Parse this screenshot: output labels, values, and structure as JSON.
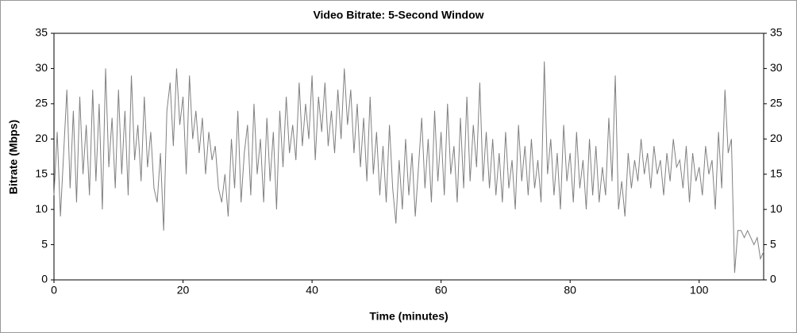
{
  "chart_data": {
    "type": "line",
    "title": "Video Bitrate: 5-Second Window",
    "x_label": "Time (minutes)",
    "y_label": "Bitrate (Mbps)",
    "xlim": [
      0,
      110
    ],
    "xticks": [
      0,
      20,
      40,
      60,
      80,
      100
    ],
    "ylim": [
      0,
      35
    ],
    "yticks": [
      0,
      5,
      10,
      15,
      20,
      25,
      30,
      35
    ],
    "y2lim": [
      0,
      35
    ],
    "y2ticks": [
      0,
      5,
      10,
      15,
      20,
      25,
      30,
      35
    ],
    "series": [
      {
        "color": "#808080",
        "x": [
          0,
          0.5,
          1,
          1.5,
          2,
          2.5,
          3,
          3.5,
          4,
          4.5,
          5,
          5.5,
          6,
          6.5,
          7,
          7.5,
          8,
          8.5,
          9,
          9.5,
          10,
          10.5,
          11,
          11.5,
          12,
          12.5,
          13,
          13.5,
          14,
          14.5,
          15,
          15.5,
          16,
          16.5,
          17,
          17.5,
          18,
          18.5,
          19,
          19.5,
          20,
          20.5,
          21,
          21.5,
          22,
          22.5,
          23,
          23.5,
          24,
          24.5,
          25,
          25.5,
          26,
          26.5,
          27,
          27.5,
          28,
          28.5,
          29,
          29.5,
          30,
          30.5,
          31,
          31.5,
          32,
          32.5,
          33,
          33.5,
          34,
          34.5,
          35,
          35.5,
          36,
          36.5,
          37,
          37.5,
          38,
          38.5,
          39,
          39.5,
          40,
          40.5,
          41,
          41.5,
          42,
          42.5,
          43,
          43.5,
          44,
          44.5,
          45,
          45.5,
          46,
          46.5,
          47,
          47.5,
          48,
          48.5,
          49,
          49.5,
          50,
          50.5,
          51,
          51.5,
          52,
          52.5,
          53,
          53.5,
          54,
          54.5,
          55,
          55.5,
          56,
          56.5,
          57,
          57.5,
          58,
          58.5,
          59,
          59.5,
          60,
          60.5,
          61,
          61.5,
          62,
          62.5,
          63,
          63.5,
          64,
          64.5,
          65,
          65.5,
          66,
          66.5,
          67,
          67.5,
          68,
          68.5,
          69,
          69.5,
          70,
          70.5,
          71,
          71.5,
          72,
          72.5,
          73,
          73.5,
          74,
          74.5,
          75,
          75.5,
          76,
          76.5,
          77,
          77.5,
          78,
          78.5,
          79,
          79.5,
          80,
          80.5,
          81,
          81.5,
          82,
          82.5,
          83,
          83.5,
          84,
          84.5,
          85,
          85.5,
          86,
          86.5,
          87,
          87.5,
          88,
          88.5,
          89,
          89.5,
          90,
          90.5,
          91,
          91.5,
          92,
          92.5,
          93,
          93.5,
          94,
          94.5,
          95,
          95.5,
          96,
          96.5,
          97,
          97.5,
          98,
          98.5,
          99,
          99.5,
          100,
          100.5,
          101,
          101.5,
          102,
          102.5,
          103,
          103.5,
          104,
          104.5,
          105,
          105.5,
          106,
          106.5,
          107,
          107.5,
          108,
          108.5,
          109,
          109.5,
          110
        ],
        "values": [
          12,
          21,
          9,
          18,
          27,
          13,
          24,
          11,
          26,
          15,
          22,
          12,
          27,
          14,
          25,
          10,
          30,
          16,
          23,
          13,
          27,
          15,
          24,
          12,
          29,
          17,
          22,
          14,
          26,
          16,
          21,
          13,
          11,
          18,
          7,
          24,
          28,
          19,
          30,
          22,
          26,
          15,
          29,
          20,
          24,
          18,
          23,
          15,
          21,
          17,
          19,
          13,
          11,
          15,
          9,
          20,
          13,
          24,
          11,
          18,
          22,
          12,
          25,
          15,
          20,
          11,
          23,
          14,
          21,
          10,
          24,
          16,
          26,
          18,
          22,
          17,
          28,
          19,
          25,
          20,
          29,
          17,
          26,
          21,
          28,
          19,
          24,
          18,
          27,
          20,
          30,
          22,
          27,
          18,
          25,
          16,
          23,
          14,
          26,
          15,
          21,
          12,
          19,
          11,
          22,
          13,
          8,
          17,
          10,
          20,
          12,
          18,
          9,
          16,
          23,
          13,
          20,
          11,
          24,
          14,
          21,
          12,
          25,
          15,
          19,
          11,
          23,
          13,
          26,
          14,
          22,
          16,
          28,
          14,
          21,
          13,
          20,
          12,
          18,
          11,
          21,
          13,
          17,
          10,
          22,
          14,
          19,
          12,
          20,
          13,
          17,
          11,
          31,
          15,
          20,
          12,
          18,
          10,
          22,
          14,
          18,
          11,
          21,
          13,
          17,
          10,
          20,
          12,
          19,
          11,
          16,
          12,
          23,
          14,
          29,
          10,
          14,
          9,
          18,
          13,
          17,
          14,
          20,
          15,
          18,
          13,
          19,
          15,
          17,
          12,
          18,
          14,
          20,
          16,
          17,
          13,
          19,
          11,
          18,
          14,
          16,
          12,
          19,
          15,
          17,
          10,
          21,
          13,
          27,
          18,
          20,
          1,
          7,
          7,
          6,
          7,
          6,
          5,
          6,
          3,
          4
        ]
      }
    ]
  }
}
